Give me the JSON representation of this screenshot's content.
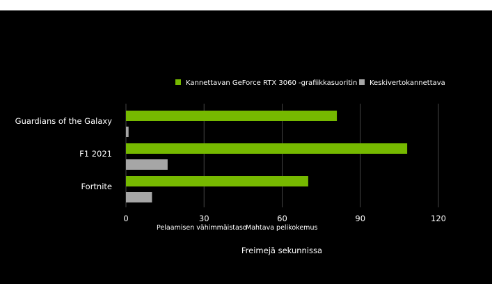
{
  "chart_data": {
    "type": "bar",
    "orientation": "horizontal",
    "categories": [
      "Guardians of the Galaxy",
      "F1 2021",
      "Fortnite"
    ],
    "series": [
      {
        "name": "Kannettavan GeForce RTX 3060 -grafiikkasuoritin",
        "values": [
          81,
          108,
          70
        ],
        "color": "#76b900"
      },
      {
        "name": "Keskivertokannettava",
        "values": [
          1,
          16,
          10
        ],
        "color": "#a6a6a6"
      }
    ],
    "xlim": [
      0,
      120
    ],
    "xticks": [
      0,
      30,
      60,
      90,
      120
    ],
    "xlabel": "Freimejä sekunnissa",
    "x_annotations": [
      {
        "text": "Pelaamisen vähimmäistaso",
        "at": 30
      },
      {
        "text": "Mahtava pelikokemus",
        "at": 60
      }
    ],
    "grid": "vertical",
    "legend_position": "top-right",
    "background": "#000000"
  }
}
